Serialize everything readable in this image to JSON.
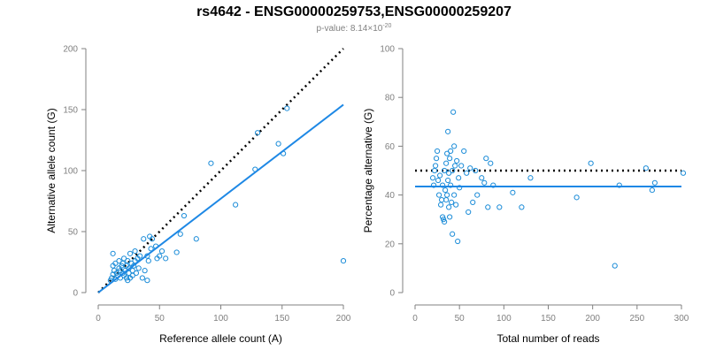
{
  "title": "rs4642 - ENSG00000259753,ENSG00000259207",
  "subtitle_prefix": "p-value: 8.14×10",
  "subtitle_exponent": "-20",
  "colors": {
    "points": "#1b8cd8",
    "fit": "#1e88e5",
    "reference": "#000000",
    "axis": "#808080"
  },
  "chart_data": [
    {
      "type": "scatter",
      "xlabel": "Reference allele count (A)",
      "ylabel": "Alternative allele count (G)",
      "xlim": [
        0,
        200
      ],
      "ylim": [
        0,
        200
      ],
      "xticks": [
        0,
        50,
        100,
        150,
        200
      ],
      "yticks": [
        0,
        50,
        100,
        150,
        200
      ],
      "grid": false,
      "points": [
        [
          10,
          10
        ],
        [
          11,
          12
        ],
        [
          12,
          15
        ],
        [
          12,
          22
        ],
        [
          12,
          32
        ],
        [
          13,
          18
        ],
        [
          14,
          11
        ],
        [
          14,
          24
        ],
        [
          15,
          16
        ],
        [
          16,
          14
        ],
        [
          17,
          20
        ],
        [
          17,
          26
        ],
        [
          18,
          12
        ],
        [
          18,
          18
        ],
        [
          19,
          22
        ],
        [
          20,
          16
        ],
        [
          20,
          24
        ],
        [
          21,
          14
        ],
        [
          21,
          28
        ],
        [
          22,
          18
        ],
        [
          23,
          12
        ],
        [
          23,
          22
        ],
        [
          24,
          26
        ],
        [
          24,
          10
        ],
        [
          25,
          16
        ],
        [
          25,
          20
        ],
        [
          26,
          32
        ],
        [
          26,
          12
        ],
        [
          27,
          24
        ],
        [
          28,
          14
        ],
        [
          28,
          18
        ],
        [
          29,
          22
        ],
        [
          30,
          34
        ],
        [
          30,
          26
        ],
        [
          31,
          16
        ],
        [
          32,
          28
        ],
        [
          33,
          20
        ],
        [
          34,
          30
        ],
        [
          36,
          12
        ],
        [
          37,
          44
        ],
        [
          38,
          18
        ],
        [
          40,
          10
        ],
        [
          40,
          30
        ],
        [
          41,
          26
        ],
        [
          42,
          46
        ],
        [
          43,
          36
        ],
        [
          44,
          44
        ],
        [
          47,
          38
        ],
        [
          48,
          28
        ],
        [
          50,
          30
        ],
        [
          52,
          34
        ],
        [
          55,
          28
        ],
        [
          64,
          33
        ],
        [
          67,
          48
        ],
        [
          70,
          63
        ],
        [
          80,
          44
        ],
        [
          92,
          106
        ],
        [
          112,
          72
        ],
        [
          128,
          101
        ],
        [
          130,
          131
        ],
        [
          147,
          122
        ],
        [
          151,
          114
        ],
        [
          154,
          151
        ],
        [
          200,
          26
        ]
      ],
      "fit_line": {
        "x": [
          0,
          200
        ],
        "y": [
          0,
          154
        ]
      },
      "reference_line": {
        "x": [
          0,
          200
        ],
        "y": [
          0,
          200
        ]
      }
    },
    {
      "type": "scatter",
      "xlabel": "Total number of reads",
      "ylabel": "Percentage alternative (G)",
      "xlim": [
        0,
        300
      ],
      "ylim": [
        0,
        100
      ],
      "xticks": [
        0,
        50,
        100,
        150,
        200,
        250,
        300
      ],
      "yticks": [
        0,
        20,
        40,
        60,
        80,
        100
      ],
      "grid": false,
      "points": [
        [
          20,
          47
        ],
        [
          21,
          44
        ],
        [
          22,
          50
        ],
        [
          23,
          52
        ],
        [
          24,
          55
        ],
        [
          25,
          58
        ],
        [
          26,
          46
        ],
        [
          27,
          40
        ],
        [
          28,
          48
        ],
        [
          29,
          36
        ],
        [
          30,
          38
        ],
        [
          31,
          44
        ],
        [
          31,
          31
        ],
        [
          32,
          30
        ],
        [
          33,
          50
        ],
        [
          33,
          29
        ],
        [
          34,
          42
        ],
        [
          35,
          53
        ],
        [
          35,
          38
        ],
        [
          36,
          40
        ],
        [
          36,
          57
        ],
        [
          37,
          46
        ],
        [
          37,
          66
        ],
        [
          38,
          49
        ],
        [
          38,
          35
        ],
        [
          39,
          55
        ],
        [
          39,
          31
        ],
        [
          40,
          44
        ],
        [
          40,
          58
        ],
        [
          41,
          37
        ],
        [
          42,
          24
        ],
        [
          42,
          50
        ],
        [
          43,
          74
        ],
        [
          44,
          60
        ],
        [
          44,
          40
        ],
        [
          45,
          52
        ],
        [
          46,
          36
        ],
        [
          47,
          54
        ],
        [
          48,
          21
        ],
        [
          49,
          47
        ],
        [
          50,
          43
        ],
        [
          52,
          52
        ],
        [
          55,
          58
        ],
        [
          58,
          49
        ],
        [
          60,
          33
        ],
        [
          62,
          51
        ],
        [
          65,
          37
        ],
        [
          68,
          50
        ],
        [
          70,
          40
        ],
        [
          75,
          47
        ],
        [
          78,
          45
        ],
        [
          80,
          55
        ],
        [
          82,
          35
        ],
        [
          85,
          53
        ],
        [
          88,
          44
        ],
        [
          95,
          35
        ],
        [
          110,
          41
        ],
        [
          120,
          35
        ],
        [
          130,
          47
        ],
        [
          182,
          39
        ],
        [
          198,
          53
        ],
        [
          225,
          11
        ],
        [
          230,
          44
        ],
        [
          260,
          51
        ],
        [
          267,
          42
        ],
        [
          270,
          45
        ],
        [
          302,
          49
        ]
      ],
      "fit_line": {
        "x": [
          0,
          300
        ],
        "y": [
          43.5,
          43.5
        ]
      },
      "reference_line": {
        "x": [
          0,
          300
        ],
        "y": [
          50,
          50
        ]
      }
    }
  ]
}
